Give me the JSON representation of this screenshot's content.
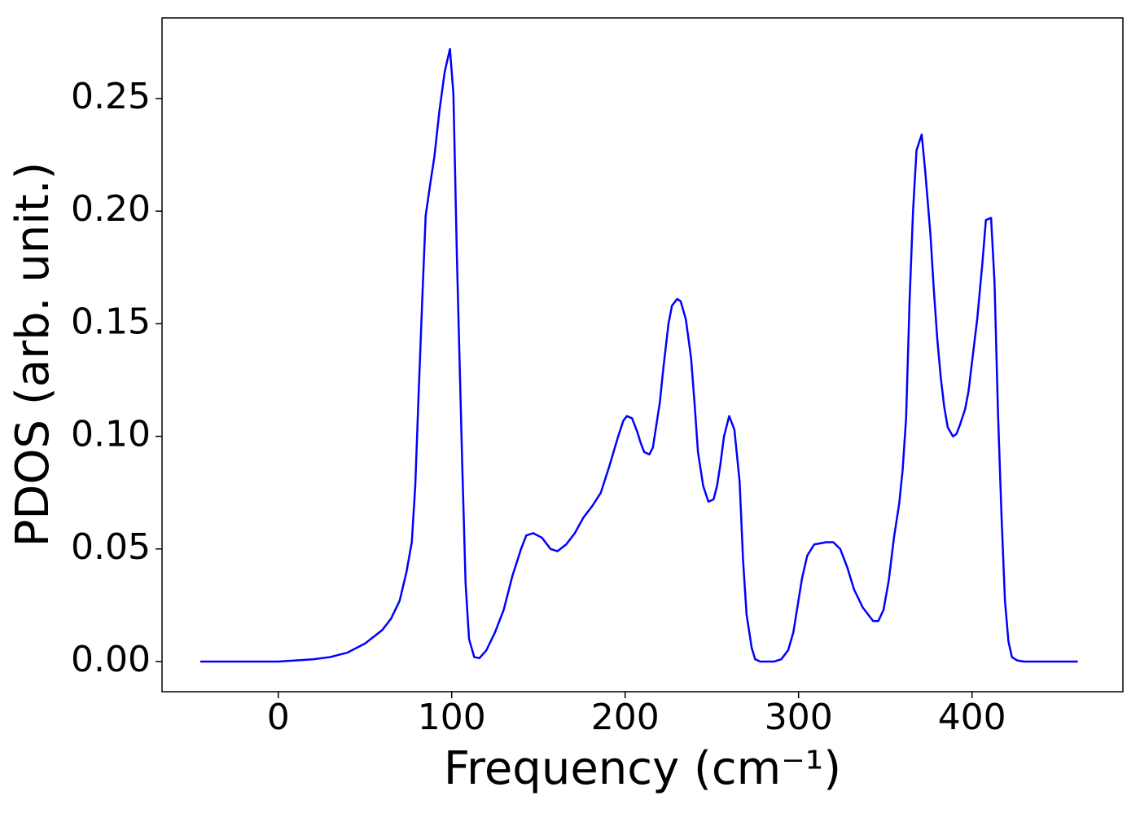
{
  "chart_data": {
    "type": "line",
    "xlabel": "Frequency (cm⁻¹)",
    "ylabel": "PDOS (arb. unit.)",
    "x": [
      -45,
      -30,
      -15,
      0,
      10,
      20,
      30,
      40,
      50,
      60,
      65,
      70,
      74,
      77,
      79,
      81,
      83,
      85,
      88,
      90,
      93,
      96,
      99,
      101,
      103,
      106,
      108,
      110,
      113,
      116,
      120,
      125,
      130,
      135,
      140,
      143,
      147,
      152,
      157,
      161,
      166,
      171,
      176,
      181,
      186,
      191,
      196,
      199,
      201,
      204,
      207,
      209,
      211,
      214,
      216,
      220,
      222,
      225,
      227,
      230,
      232,
      235,
      238,
      240,
      242,
      245,
      248,
      251,
      253,
      255,
      257,
      260,
      263,
      266,
      268,
      270,
      273,
      275,
      278,
      282,
      286,
      290,
      294,
      297,
      302,
      305,
      309,
      316,
      320,
      324,
      328,
      332,
      337,
      343,
      346,
      349,
      352,
      355,
      358,
      360,
      362,
      364,
      366,
      368,
      371,
      373,
      376,
      378,
      380,
      382,
      384,
      386,
      389,
      391,
      393,
      396,
      398,
      400,
      403,
      406,
      408,
      411,
      413,
      415,
      417,
      419,
      421,
      423,
      426,
      430,
      445,
      461
    ],
    "series": [
      {
        "color": "#0000ff",
        "values": [
          0,
          0,
          0,
          0,
          0.0005,
          0.001,
          0.002,
          0.004,
          0.008,
          0.014,
          0.019,
          0.027,
          0.04,
          0.053,
          0.078,
          0.12,
          0.16,
          0.198,
          0.214,
          0.224,
          0.245,
          0.262,
          0.272,
          0.252,
          0.18,
          0.09,
          0.035,
          0.01,
          0.002,
          0.0015,
          0.005,
          0.013,
          0.023,
          0.038,
          0.05,
          0.056,
          0.057,
          0.055,
          0.05,
          0.049,
          0.052,
          0.057,
          0.064,
          0.069,
          0.075,
          0.087,
          0.1,
          0.107,
          0.109,
          0.108,
          0.102,
          0.097,
          0.093,
          0.092,
          0.095,
          0.115,
          0.13,
          0.15,
          0.158,
          0.161,
          0.16,
          0.152,
          0.135,
          0.115,
          0.093,
          0.078,
          0.071,
          0.072,
          0.078,
          0.088,
          0.1,
          0.109,
          0.103,
          0.08,
          0.045,
          0.021,
          0.006,
          0.001,
          0,
          0,
          0,
          0.001,
          0.005,
          0.013,
          0.037,
          0.047,
          0.052,
          0.053,
          0.053,
          0.05,
          0.042,
          0.032,
          0.024,
          0.018,
          0.018,
          0.023,
          0.036,
          0.055,
          0.07,
          0.085,
          0.108,
          0.16,
          0.2,
          0.227,
          0.234,
          0.218,
          0.19,
          0.165,
          0.143,
          0.126,
          0.113,
          0.104,
          0.1,
          0.101,
          0.105,
          0.112,
          0.12,
          0.133,
          0.152,
          0.177,
          0.196,
          0.197,
          0.168,
          0.11,
          0.065,
          0.027,
          0.009,
          0.002,
          0.0005,
          0,
          0,
          0
        ]
      }
    ],
    "xlim": [
      -67,
      487
    ],
    "ylim": [
      -0.0134,
      0.2858
    ],
    "xticks": [
      0,
      100,
      200,
      300,
      400
    ],
    "yticks": [
      {
        "value": 0,
        "label": "0.00"
      },
      {
        "value": 0.05,
        "label": "0.05"
      },
      {
        "value": 0.1,
        "label": "0.10"
      },
      {
        "value": 0.15,
        "label": "0.15"
      },
      {
        "value": 0.2,
        "label": "0.20"
      },
      {
        "value": 0.25,
        "label": "0.25"
      }
    ],
    "grid": false
  }
}
